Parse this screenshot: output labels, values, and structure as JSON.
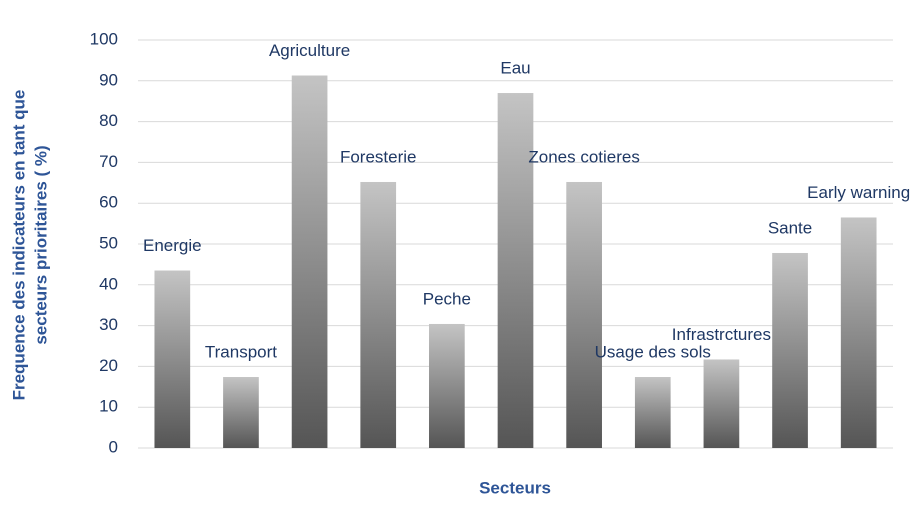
{
  "chart_data": {
    "type": "bar",
    "x_label": "Secteurs",
    "y_label": [
      "Frequence des  indicateurs en tant que",
      "secteurs prioritaires  ( %)"
    ],
    "categories": [
      "Energie",
      "Transport",
      "Agriculture",
      "Foresterie",
      "Peche",
      "Eau",
      "Zones cotieres",
      "Usage des sols",
      "Infrastrctures",
      "Sante",
      "Early warning"
    ],
    "values": [
      43.5,
      17.4,
      91.3,
      65.2,
      30.4,
      87,
      65.2,
      17.4,
      21.7,
      47.8,
      56.5
    ],
    "gradient": [
      "#c4c4c4",
      "#555555"
    ],
    "ylim": [
      0,
      100
    ],
    "yticks": [
      0,
      10,
      20,
      30,
      40,
      50,
      60,
      70,
      80,
      90,
      100
    ],
    "grid": true
  }
}
